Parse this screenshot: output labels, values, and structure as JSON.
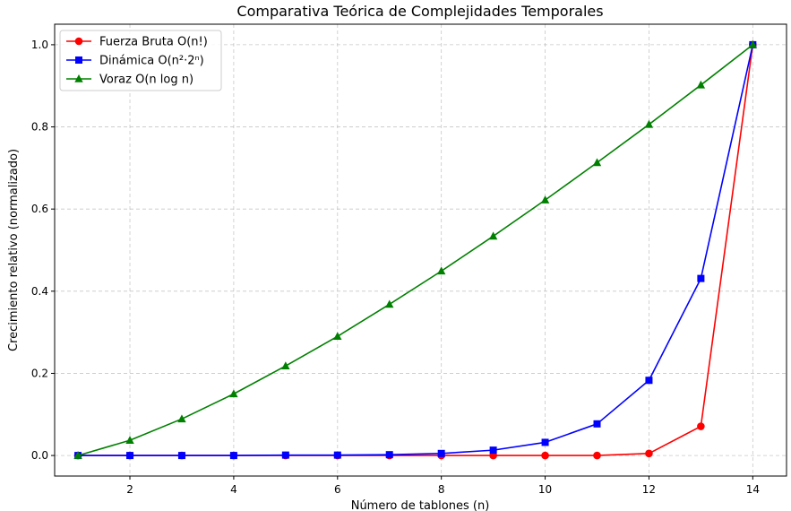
{
  "chart_data": {
    "type": "line",
    "title": "Comparativa Teórica de Complejidades Temporales",
    "xlabel": "Número de tablones (n)",
    "ylabel": "Crecimiento relativo (normalizado)",
    "xlim": [
      0.55,
      14.65
    ],
    "ylim": [
      -0.05,
      1.05
    ],
    "xticks": [
      2,
      4,
      6,
      8,
      10,
      12,
      14
    ],
    "yticks": [
      0.0,
      0.2,
      0.4,
      0.6,
      0.8,
      1.0
    ],
    "x": [
      1,
      2,
      3,
      4,
      5,
      6,
      7,
      8,
      9,
      10,
      11,
      12,
      13,
      14
    ],
    "grid": true,
    "legend_position": "top-left",
    "series": [
      {
        "name": "Fuerza Bruta O(n!)",
        "color": "#ff0000",
        "marker": "circle",
        "values": [
          0.0,
          0.0,
          0.0,
          0.0,
          0.0,
          0.0,
          0.0,
          0.0,
          0.0,
          0.0,
          0.0,
          0.005,
          0.071,
          1.0
        ]
      },
      {
        "name": "Dinámica O(n²·2ⁿ)",
        "color": "#0000ff",
        "marker": "square",
        "values": [
          0.0,
          0.0,
          0.0,
          0.0,
          0.001,
          0.001,
          0.002,
          0.005,
          0.013,
          0.032,
          0.077,
          0.183,
          0.431,
          1.0
        ]
      },
      {
        "name": "Voraz O(n log n)",
        "color": "#008000",
        "marker": "triangle",
        "values": [
          0.0,
          0.037,
          0.089,
          0.15,
          0.218,
          0.29,
          0.368,
          0.449,
          0.534,
          0.622,
          0.713,
          0.806,
          0.902,
          1.0
        ]
      }
    ]
  }
}
